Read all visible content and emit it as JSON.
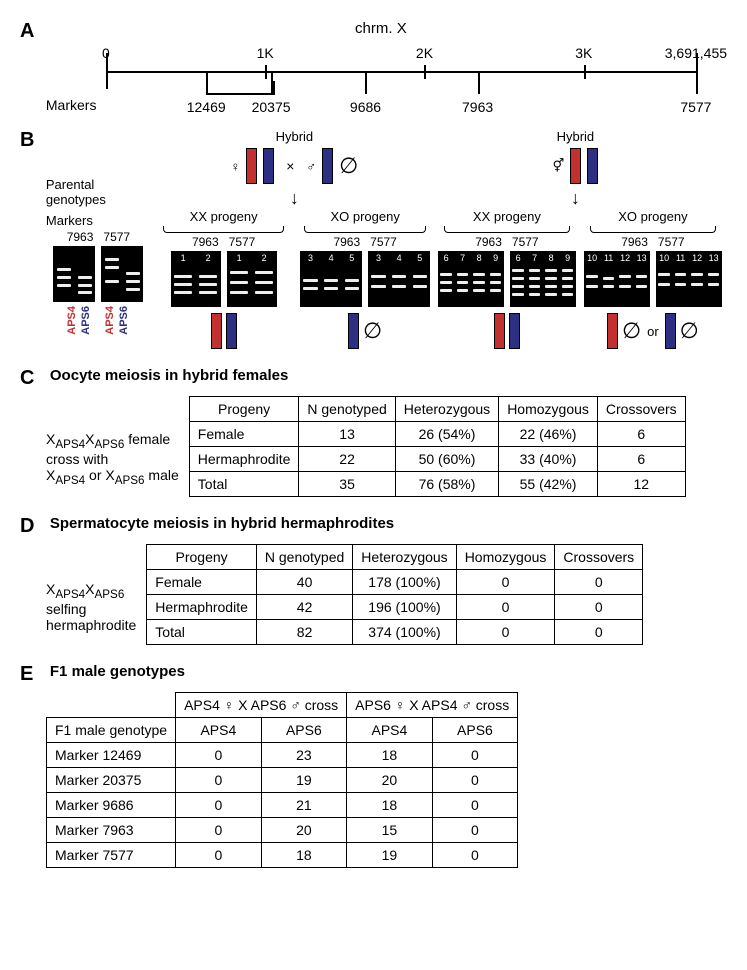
{
  "panelA": {
    "chrom_label": "chrm. X",
    "markers_label": "Markers",
    "axis_top": [
      {
        "label": "0",
        "pct": 0
      },
      {
        "label": "1K",
        "pct": 27
      },
      {
        "label": "2K",
        "pct": 54
      },
      {
        "label": "3K",
        "pct": 81
      },
      {
        "label": "3,691,455",
        "pct": 100
      }
    ],
    "markers": [
      {
        "name": "12469",
        "pct": 17
      },
      {
        "name": "20375",
        "pct": 28
      },
      {
        "name": "9686",
        "pct": 44
      },
      {
        "name": "7963",
        "pct": 63
      },
      {
        "name": "7577",
        "pct": 100
      }
    ]
  },
  "panelB": {
    "parental_label": "Parental\ngenotypes",
    "markers_label": "Markers",
    "hybrid_label": "Hybrid",
    "xx_label": "XX progeny",
    "xo_label": "XO progeny",
    "marker_names": [
      "7963",
      "7577"
    ],
    "strain_red": "APS4",
    "strain_blue": "APS6",
    "or_label": "or",
    "cross_symbol": "×",
    "colors": {
      "red": "#c23030",
      "blue": "#2c2f82",
      "gel_bg": "#000000",
      "band": "#eeeeee"
    }
  },
  "panelC": {
    "title": "Oocyte meiosis in hybrid females",
    "row_label_lines": [
      "X",
      "APS4",
      "X",
      "APS6",
      " female",
      "cross with",
      "X",
      "APS4",
      " or X",
      "APS6",
      " male"
    ],
    "row_label_html": "X<sub>APS4</sub>X<sub>APS6</sub> female<br>cross with<br>X<sub>APS4</sub> or X<sub>APS6</sub> male",
    "columns": [
      "Progeny",
      "N genotyped",
      "Heterozygous",
      "Homozygous",
      "Crossovers"
    ],
    "rows": [
      [
        "Female",
        "13",
        "26 (54%)",
        "22 (46%)",
        "6"
      ],
      [
        "Hermaphrodite",
        "22",
        "50 (60%)",
        "33 (40%)",
        "6"
      ],
      [
        "Total",
        "35",
        "76 (58%)",
        "55 (42%)",
        "12"
      ]
    ]
  },
  "panelD": {
    "title": "Spermatocyte meiosis in hybrid hermaphrodites",
    "row_label_html": "X<sub>APS4</sub>X<sub>APS6</sub><br>selfing<br>hermaphrodite",
    "columns": [
      "Progeny",
      "N genotyped",
      "Heterozygous",
      "Homozygous",
      "Crossovers"
    ],
    "rows": [
      [
        "Female",
        "40",
        "178 (100%)",
        "0",
        "0"
      ],
      [
        "Hermaphrodite",
        "42",
        "196 (100%)",
        "0",
        "0"
      ],
      [
        "Total",
        "82",
        "374 (100%)",
        "0",
        "0"
      ]
    ]
  },
  "panelE": {
    "title": "F1 male genotypes",
    "header_cross1": "APS4 ♀  X  APS6 ♂ cross",
    "header_cross2": "APS6 ♀  X  APS4 ♂ cross",
    "row_header": "F1 male genotype",
    "sub_cols": [
      "APS4",
      "APS6",
      "APS4",
      "APS6"
    ],
    "rows": [
      [
        "Marker 12469",
        "0",
        "23",
        "18",
        "0"
      ],
      [
        "Marker 20375",
        "0",
        "19",
        "20",
        "0"
      ],
      [
        "Marker 9686",
        "0",
        "21",
        "18",
        "0"
      ],
      [
        "Marker 7963",
        "0",
        "20",
        "15",
        "0"
      ],
      [
        "Marker 7577",
        "0",
        "18",
        "19",
        "0"
      ]
    ]
  }
}
